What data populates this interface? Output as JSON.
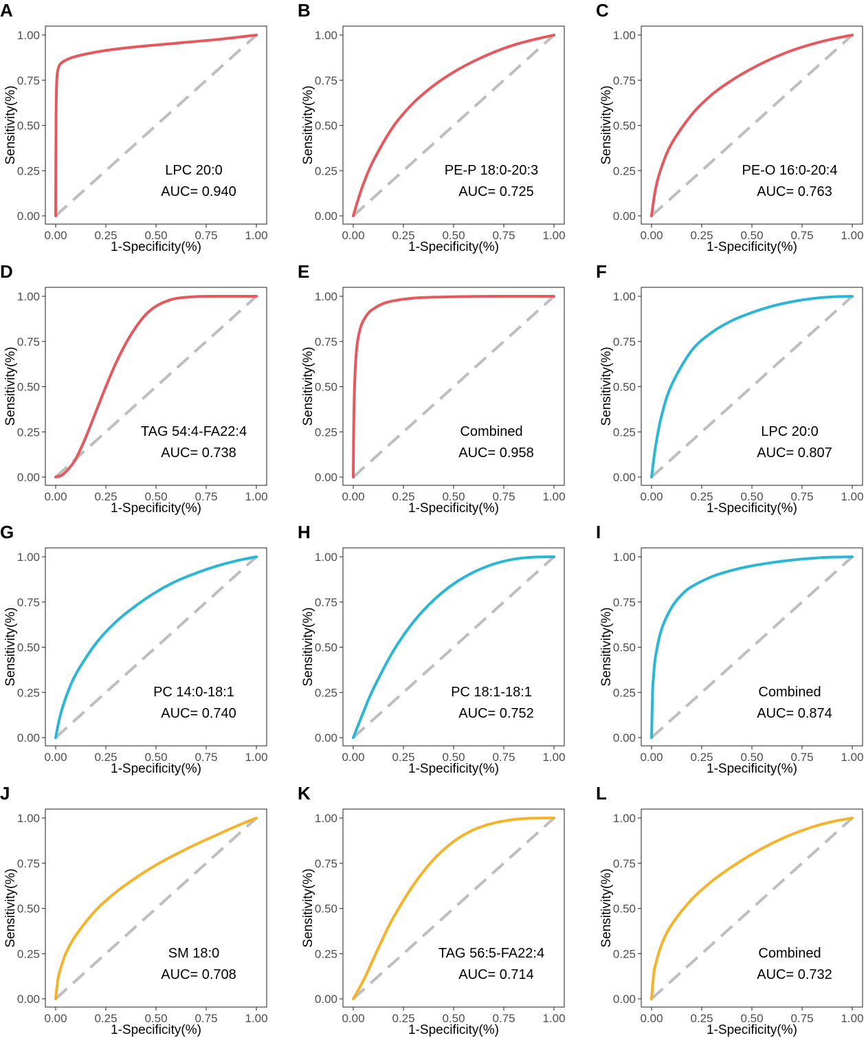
{
  "colors": {
    "red": "#e5585e",
    "blue": "#2bb6d6",
    "orange": "#f4b32b",
    "reference": "#bebebe"
  },
  "axes": {
    "xlabel": "1-Specificity(%)",
    "ylabel": "Sensitivity(%)",
    "xticks": [
      "0.00",
      "0.25",
      "0.50",
      "0.75",
      "1.00"
    ],
    "yticks": [
      "0.00",
      "0.25",
      "0.50",
      "0.75",
      "1.00"
    ],
    "xlim": [
      0,
      1
    ],
    "ylim": [
      0,
      1
    ]
  },
  "chart_data": [
    {
      "panel": "A",
      "type": "line",
      "label": "LPC 20:0",
      "auc_text": "AUC= 0.940",
      "color": "red",
      "x": [
        0,
        0.002,
        0.005,
        0.01,
        0.02,
        0.04,
        0.08,
        0.15,
        0.25,
        0.4,
        0.6,
        0.8,
        1.0
      ],
      "y": [
        0,
        0.55,
        0.74,
        0.8,
        0.835,
        0.855,
        0.875,
        0.895,
        0.915,
        0.935,
        0.955,
        0.975,
        1.0
      ]
    },
    {
      "panel": "B",
      "type": "line",
      "label": "PE-P 18:0-20:3",
      "auc_text": "AUC= 0.725",
      "color": "red",
      "x": [
        0,
        0.02,
        0.05,
        0.1,
        0.2,
        0.3,
        0.4,
        0.5,
        0.6,
        0.7,
        0.8,
        0.9,
        1.0
      ],
      "y": [
        0,
        0.075,
        0.175,
        0.305,
        0.495,
        0.625,
        0.72,
        0.795,
        0.855,
        0.905,
        0.945,
        0.975,
        1.0
      ]
    },
    {
      "panel": "C",
      "type": "line",
      "label": "PE-O 16:0-20:4",
      "auc_text": "AUC= 0.763",
      "color": "red",
      "x": [
        0,
        0.02,
        0.05,
        0.1,
        0.2,
        0.3,
        0.4,
        0.5,
        0.6,
        0.7,
        0.8,
        0.9,
        1.0
      ],
      "y": [
        0,
        0.15,
        0.27,
        0.4,
        0.56,
        0.67,
        0.75,
        0.815,
        0.87,
        0.915,
        0.95,
        0.978,
        1.0
      ]
    },
    {
      "panel": "D",
      "type": "line",
      "label": "TAG 54:4-FA22:4",
      "auc_text": "AUC= 0.738",
      "color": "red",
      "x": [
        0,
        0.03,
        0.06,
        0.1,
        0.15,
        0.2,
        0.25,
        0.3,
        0.35,
        0.4,
        0.45,
        0.5,
        0.55,
        0.6,
        0.7,
        0.8,
        0.9,
        1.0
      ],
      "y": [
        0,
        0.01,
        0.04,
        0.1,
        0.22,
        0.36,
        0.5,
        0.63,
        0.74,
        0.83,
        0.9,
        0.945,
        0.972,
        0.988,
        0.998,
        1.0,
        1.0,
        1.0
      ]
    },
    {
      "panel": "E",
      "type": "line",
      "label": "Combined",
      "auc_text": "AUC= 0.958",
      "color": "red",
      "x": [
        0,
        0.003,
        0.01,
        0.02,
        0.04,
        0.07,
        0.1,
        0.15,
        0.2,
        0.3,
        0.4,
        0.6,
        0.8,
        1.0
      ],
      "y": [
        0,
        0.35,
        0.6,
        0.74,
        0.84,
        0.9,
        0.93,
        0.96,
        0.975,
        0.99,
        0.995,
        0.999,
        1.0,
        1.0
      ]
    },
    {
      "panel": "F",
      "type": "line",
      "label": "LPC 20:0",
      "auc_text": "AUC= 0.807",
      "color": "blue",
      "x": [
        0,
        0.02,
        0.05,
        0.1,
        0.2,
        0.3,
        0.4,
        0.5,
        0.6,
        0.7,
        0.8,
        0.9,
        1.0
      ],
      "y": [
        0,
        0.17,
        0.34,
        0.51,
        0.7,
        0.8,
        0.865,
        0.91,
        0.945,
        0.97,
        0.987,
        0.997,
        1.0
      ]
    },
    {
      "panel": "G",
      "type": "line",
      "label": "PC 14:0-18:1",
      "auc_text": "AUC= 0.740",
      "color": "blue",
      "x": [
        0,
        0.02,
        0.05,
        0.1,
        0.2,
        0.3,
        0.4,
        0.5,
        0.6,
        0.7,
        0.8,
        0.9,
        1.0
      ],
      "y": [
        0,
        0.11,
        0.22,
        0.35,
        0.52,
        0.64,
        0.73,
        0.805,
        0.865,
        0.91,
        0.948,
        0.978,
        1.0
      ]
    },
    {
      "panel": "H",
      "type": "line",
      "label": "PC 18:1-18:1",
      "auc_text": "AUC= 0.752",
      "color": "blue",
      "x": [
        0,
        0.05,
        0.1,
        0.2,
        0.3,
        0.4,
        0.5,
        0.6,
        0.7,
        0.8,
        0.9,
        1.0
      ],
      "y": [
        0,
        0.14,
        0.27,
        0.48,
        0.64,
        0.76,
        0.85,
        0.915,
        0.96,
        0.987,
        0.998,
        1.0
      ]
    },
    {
      "panel": "I",
      "type": "line",
      "label": "Combined",
      "auc_text": "AUC= 0.874",
      "color": "blue",
      "x": [
        0,
        0.005,
        0.01,
        0.02,
        0.05,
        0.1,
        0.15,
        0.2,
        0.3,
        0.4,
        0.5,
        0.6,
        0.7,
        0.8,
        0.9,
        1.0
      ],
      "y": [
        0,
        0.25,
        0.34,
        0.45,
        0.6,
        0.72,
        0.79,
        0.835,
        0.89,
        0.925,
        0.95,
        0.968,
        0.982,
        0.992,
        0.998,
        1.0
      ]
    },
    {
      "panel": "J",
      "type": "line",
      "label": "SM 18:0",
      "auc_text": "AUC= 0.708",
      "color": "orange",
      "x": [
        0,
        0.01,
        0.02,
        0.05,
        0.1,
        0.2,
        0.3,
        0.4,
        0.5,
        0.6,
        0.7,
        0.8,
        0.9,
        1.0
      ],
      "y": [
        0,
        0.1,
        0.15,
        0.25,
        0.35,
        0.49,
        0.59,
        0.67,
        0.74,
        0.8,
        0.855,
        0.905,
        0.955,
        1.0
      ]
    },
    {
      "panel": "K",
      "type": "line",
      "label": "TAG 56:5-FA22:4",
      "auc_text": "AUC= 0.714",
      "color": "orange",
      "x": [
        0,
        0.05,
        0.1,
        0.15,
        0.2,
        0.3,
        0.4,
        0.5,
        0.6,
        0.7,
        0.8,
        0.9,
        1.0
      ],
      "y": [
        0,
        0.1,
        0.22,
        0.34,
        0.45,
        0.63,
        0.77,
        0.87,
        0.935,
        0.972,
        0.992,
        0.999,
        1.0
      ]
    },
    {
      "panel": "L",
      "type": "line",
      "label": "Combined",
      "auc_text": "AUC= 0.732",
      "color": "orange",
      "x": [
        0,
        0.01,
        0.02,
        0.05,
        0.1,
        0.2,
        0.3,
        0.4,
        0.5,
        0.6,
        0.7,
        0.8,
        0.9,
        1.0
      ],
      "y": [
        0,
        0.13,
        0.19,
        0.3,
        0.41,
        0.55,
        0.65,
        0.73,
        0.8,
        0.86,
        0.91,
        0.95,
        0.98,
        1.0
      ]
    }
  ]
}
